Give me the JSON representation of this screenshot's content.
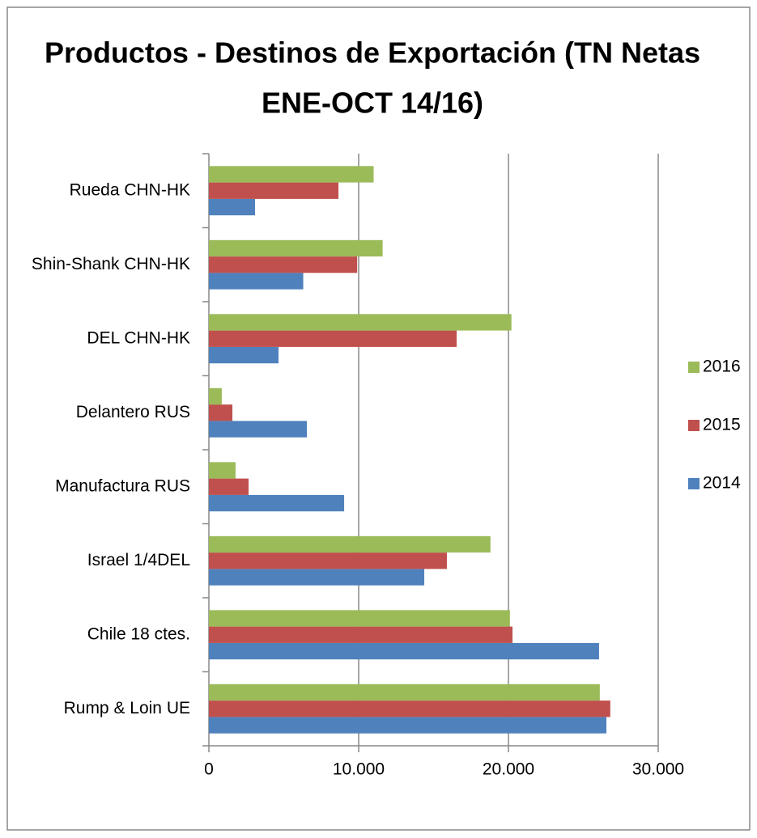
{
  "chart_data": {
    "type": "hbar",
    "title": [
      "Productos - Destinos de Exportación (TN Netas",
      "ENE-OCT 14/16)"
    ],
    "categories": [
      "Rueda CHN-HK",
      "Shin-Shank CHN-HK",
      "DEL CHN-HK",
      "Delantero RUS",
      "Manufactura RUS",
      "Israel 1/4DEL",
      "Chile 18 ctes.",
      "Rump & Loin UE"
    ],
    "series": [
      {
        "name": "2014",
        "color": "#4f81bd",
        "values": [
          3080,
          6300,
          4650,
          6540,
          9030,
          14380,
          26050,
          26540
        ]
      },
      {
        "name": "2015",
        "color": "#c0504d",
        "values": [
          8650,
          9900,
          16540,
          1570,
          2650,
          15890,
          20270,
          26800
        ]
      },
      {
        "name": "2016",
        "color": "#9bbb59",
        "values": [
          11000,
          11600,
          20200,
          860,
          1780,
          18800,
          20100,
          26100
        ]
      }
    ],
    "xlim": [
      0,
      30000
    ],
    "xticks": [
      0,
      {
        "value": 10000,
        "label": "10.000"
      },
      {
        "value": 20000,
        "label": "20.000"
      },
      {
        "value": 30000,
        "label": "30.000"
      }
    ],
    "grid": true,
    "legend": "right"
  }
}
